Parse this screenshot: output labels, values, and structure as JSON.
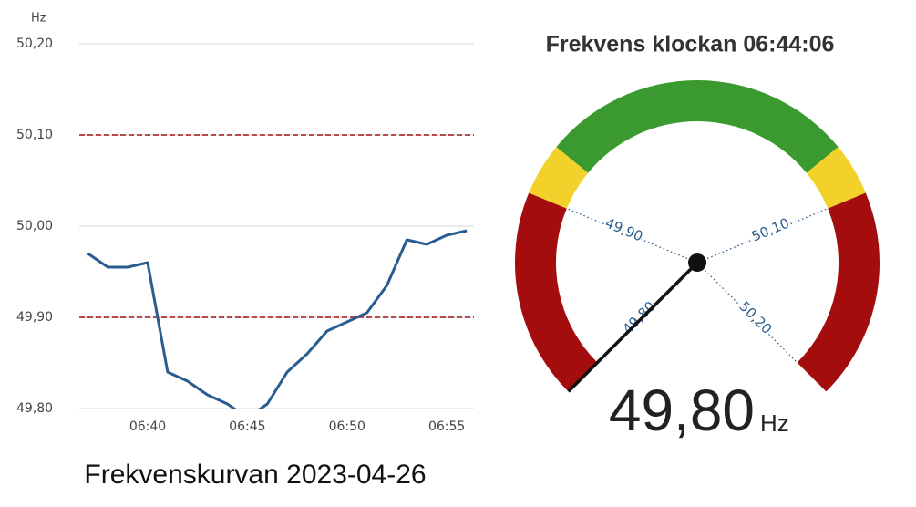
{
  "chart_data": [
    {
      "type": "line",
      "y_label": "Hz",
      "caption": "Frekvenskurvan 2023-04-26",
      "x": [
        "06:37",
        "06:38",
        "06:39",
        "06:40",
        "06:41",
        "06:42",
        "06:43",
        "06:44",
        "06:45",
        "06:46",
        "06:47",
        "06:48",
        "06:49",
        "06:50",
        "06:51",
        "06:52",
        "06:53",
        "06:54",
        "06:55",
        "06:56"
      ],
      "values": [
        49.97,
        49.955,
        49.955,
        49.96,
        49.84,
        49.83,
        49.815,
        49.805,
        49.79,
        49.805,
        49.84,
        49.86,
        49.885,
        49.895,
        49.905,
        49.935,
        49.985,
        49.98,
        49.99,
        49.995
      ],
      "color": "#2a5d8f",
      "xlim": [
        "06:36",
        "06:56"
      ],
      "xticks": [
        "06:40",
        "06:45",
        "06:50",
        "06:55"
      ],
      "ylim": [
        49.8,
        50.2
      ],
      "yticks": [
        {
          "value": 49.8,
          "label": "49,80"
        },
        {
          "value": 49.9,
          "label": "49,90"
        },
        {
          "value": 50.0,
          "label": "50,00"
        },
        {
          "value": 50.1,
          "label": "50,10"
        },
        {
          "value": 50.2,
          "label": "50,20"
        }
      ],
      "grid": true,
      "reference_lines": [
        49.9,
        50.1
      ],
      "reference_color": "#a01010"
    },
    {
      "type": "gauge",
      "title": "Frekvens klockan 06:44:06",
      "value": 49.8,
      "value_label": "49,80",
      "unit": "Hz",
      "lim": [
        49.8,
        50.2
      ],
      "ticks": [
        {
          "value": 49.8,
          "label": "49,80"
        },
        {
          "value": 49.9,
          "label": "49,90"
        },
        {
          "value": 50.1,
          "label": "50,10"
        },
        {
          "value": 50.2,
          "label": "50,20"
        }
      ],
      "bands": [
        {
          "from": 49.8,
          "to": 49.9,
          "color": "#a30d0d"
        },
        {
          "from": 49.9,
          "to": 49.925,
          "color": "#f2d12a"
        },
        {
          "from": 49.925,
          "to": 50.075,
          "color": "#3a9a2f"
        },
        {
          "from": 50.075,
          "to": 50.1,
          "color": "#f2d12a"
        },
        {
          "from": 50.1,
          "to": 50.2,
          "color": "#a30d0d"
        }
      ]
    }
  ]
}
